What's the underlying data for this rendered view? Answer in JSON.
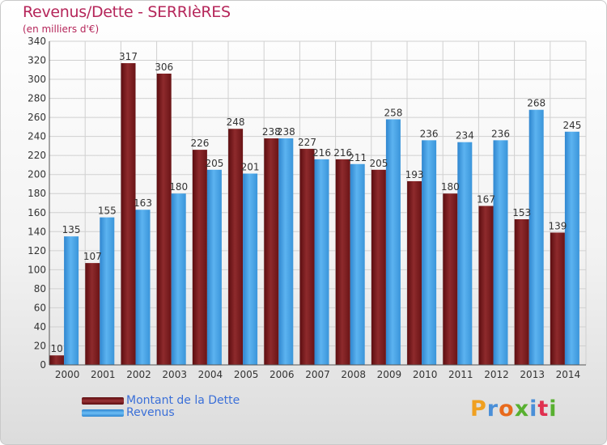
{
  "title": "Revenus/Dette - SERRIèRES",
  "unit_label": "(en milliers d'€)",
  "legend": [
    {
      "label": "Montant de la Dette",
      "color": "#8a1f22"
    },
    {
      "label": "Revenus",
      "color": "#3f9de3"
    }
  ],
  "logo": {
    "letters": [
      "P",
      "r",
      "o",
      "x",
      "i",
      "t",
      "i"
    ],
    "colors": [
      "#f0a020",
      "#4a8fd8",
      "#e86a1c",
      "#58b030",
      "#4a8fd8",
      "#e03050",
      "#58b030"
    ]
  },
  "chart_data": {
    "type": "bar",
    "title": "Revenus/Dette - SERRIèRES",
    "ylabel": "(en milliers d'€)",
    "xlabel": "",
    "ylim": [
      0,
      340
    ],
    "yticks": [
      0,
      20,
      40,
      60,
      80,
      100,
      120,
      140,
      160,
      180,
      200,
      220,
      240,
      260,
      280,
      300,
      320,
      340
    ],
    "grid": true,
    "legend_position": "bottom-left",
    "categories": [
      "2000",
      "2001",
      "2002",
      "2003",
      "2004",
      "2005",
      "2006",
      "2007",
      "2008",
      "2009",
      "2010",
      "2011",
      "2012",
      "2013",
      "2014"
    ],
    "series": [
      {
        "name": "Montant de la Dette",
        "color": "#8a1f22",
        "values": [
          10,
          107,
          317,
          306,
          226,
          248,
          238,
          227,
          216,
          205,
          193,
          180,
          167,
          153,
          139
        ]
      },
      {
        "name": "Revenus",
        "color": "#3f9de3",
        "values": [
          135,
          155,
          163,
          180,
          205,
          201,
          238,
          216,
          211,
          258,
          236,
          234,
          236,
          268,
          245
        ]
      }
    ]
  }
}
